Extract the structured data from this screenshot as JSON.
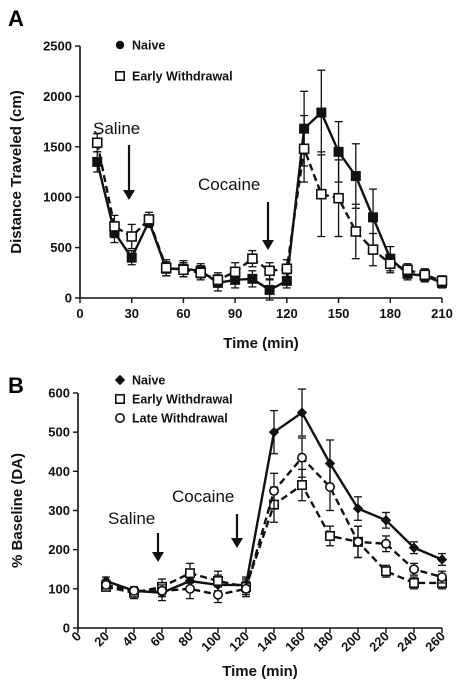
{
  "chart_data": [
    {
      "panel": "A",
      "type": "line",
      "xlabel": "Time (min)",
      "ylabel": "Distance Traveled (cm)",
      "xlim": [
        0,
        210
      ],
      "ylim": [
        0,
        2500
      ],
      "xticks": [
        0,
        30,
        60,
        90,
        120,
        150,
        180,
        210
      ],
      "yticks": [
        0,
        500,
        1000,
        1500,
        2000,
        2500
      ],
      "legend_position": "top-left",
      "grid": false,
      "series": [
        {
          "name": "Naive",
          "marker": "filled-square",
          "line": "solid",
          "points": [
            {
              "x": 10,
              "y": 1350,
              "err": 100
            },
            {
              "x": 20,
              "y": 650,
              "err": 100
            },
            {
              "x": 30,
              "y": 400,
              "err": 70
            },
            {
              "x": 40,
              "y": 760,
              "err": 60
            },
            {
              "x": 50,
              "y": 290,
              "err": 70
            },
            {
              "x": 60,
              "y": 290,
              "err": 80
            },
            {
              "x": 70,
              "y": 270,
              "err": 70
            },
            {
              "x": 80,
              "y": 150,
              "err": 80
            },
            {
              "x": 90,
              "y": 180,
              "err": 80
            },
            {
              "x": 100,
              "y": 190,
              "err": 80
            },
            {
              "x": 110,
              "y": 80,
              "err": 100
            },
            {
              "x": 120,
              "y": 170,
              "err": 70
            },
            {
              "x": 130,
              "y": 1680,
              "err": 370
            },
            {
              "x": 140,
              "y": 1840,
              "err": 420
            },
            {
              "x": 150,
              "y": 1450,
              "err": 300
            },
            {
              "x": 160,
              "y": 1210,
              "err": 320
            },
            {
              "x": 170,
              "y": 800,
              "err": 280
            },
            {
              "x": 180,
              "y": 390,
              "err": 120
            },
            {
              "x": 190,
              "y": 240,
              "err": 60
            },
            {
              "x": 200,
              "y": 220,
              "err": 60
            },
            {
              "x": 210,
              "y": 150,
              "err": 50
            }
          ]
        },
        {
          "name": "Early Withdrawal",
          "marker": "open-square",
          "line": "dashed",
          "points": [
            {
              "x": 10,
              "y": 1540,
              "err": 90
            },
            {
              "x": 20,
              "y": 710,
              "err": 110
            },
            {
              "x": 30,
              "y": 610,
              "err": 120
            },
            {
              "x": 40,
              "y": 780,
              "err": 70
            },
            {
              "x": 50,
              "y": 300,
              "err": 80
            },
            {
              "x": 60,
              "y": 280,
              "err": 70
            },
            {
              "x": 70,
              "y": 250,
              "err": 70
            },
            {
              "x": 80,
              "y": 180,
              "err": 70
            },
            {
              "x": 90,
              "y": 260,
              "err": 90
            },
            {
              "x": 100,
              "y": 390,
              "err": 80
            },
            {
              "x": 110,
              "y": 270,
              "err": 80
            },
            {
              "x": 120,
              "y": 290,
              "err": 90
            },
            {
              "x": 130,
              "y": 1480,
              "err": 330
            },
            {
              "x": 140,
              "y": 1030,
              "err": 420
            },
            {
              "x": 150,
              "y": 990,
              "err": 380
            },
            {
              "x": 160,
              "y": 660,
              "err": 270
            },
            {
              "x": 170,
              "y": 480,
              "err": 160
            },
            {
              "x": 180,
              "y": 340,
              "err": 90
            },
            {
              "x": 190,
              "y": 280,
              "err": 60
            },
            {
              "x": 200,
              "y": 230,
              "err": 60
            },
            {
              "x": 210,
              "y": 170,
              "err": 50
            }
          ]
        }
      ],
      "annotations": [
        {
          "text": "Saline",
          "x": 30
        },
        {
          "text": "Cocaine",
          "x": 115
        }
      ]
    },
    {
      "panel": "B",
      "type": "line",
      "xlabel": "Time (min)",
      "ylabel": "% Baseline (DA)",
      "xlim": [
        0,
        260
      ],
      "ylim": [
        0,
        600
      ],
      "xticks": [
        0,
        20,
        40,
        60,
        80,
        100,
        120,
        140,
        160,
        180,
        200,
        220,
        240,
        260
      ],
      "yticks": [
        0,
        100,
        200,
        300,
        400,
        500,
        600
      ],
      "legend_position": "top-left",
      "grid": false,
      "series": [
        {
          "name": "Naive",
          "marker": "filled-diamond",
          "line": "solid",
          "points": [
            {
              "x": 20,
              "y": 120,
              "err": 10
            },
            {
              "x": 40,
              "y": 95,
              "err": 10
            },
            {
              "x": 60,
              "y": 90,
              "err": 20
            },
            {
              "x": 80,
              "y": 120,
              "err": 25
            },
            {
              "x": 100,
              "y": 110,
              "err": 25
            },
            {
              "x": 120,
              "y": 110,
              "err": 20
            },
            {
              "x": 140,
              "y": 500,
              "err": 55
            },
            {
              "x": 160,
              "y": 550,
              "err": 60
            },
            {
              "x": 180,
              "y": 420,
              "err": 60
            },
            {
              "x": 200,
              "y": 305,
              "err": 30
            },
            {
              "x": 220,
              "y": 275,
              "err": 20
            },
            {
              "x": 240,
              "y": 205,
              "err": 15
            },
            {
              "x": 260,
              "y": 175,
              "err": 15
            }
          ]
        },
        {
          "name": "Early Withdrawal",
          "marker": "open-square",
          "line": "dashed",
          "points": [
            {
              "x": 20,
              "y": 105,
              "err": 10
            },
            {
              "x": 40,
              "y": 90,
              "err": 15
            },
            {
              "x": 60,
              "y": 105,
              "err": 20
            },
            {
              "x": 80,
              "y": 140,
              "err": 25
            },
            {
              "x": 100,
              "y": 120,
              "err": 25
            },
            {
              "x": 120,
              "y": 105,
              "err": 20
            },
            {
              "x": 140,
              "y": 315,
              "err": 45
            },
            {
              "x": 160,
              "y": 365,
              "err": 40
            },
            {
              "x": 180,
              "y": 235,
              "err": 25
            },
            {
              "x": 200,
              "y": 220,
              "err": 40
            },
            {
              "x": 220,
              "y": 145,
              "err": 15
            },
            {
              "x": 240,
              "y": 115,
              "err": 15
            },
            {
              "x": 260,
              "y": 115,
              "err": 15
            }
          ]
        },
        {
          "name": "Late Withdrawal",
          "marker": "open-circle",
          "line": "dashed",
          "points": [
            {
              "x": 20,
              "y": 110,
              "err": 10
            },
            {
              "x": 40,
              "y": 95,
              "err": 10
            },
            {
              "x": 60,
              "y": 95,
              "err": 15
            },
            {
              "x": 80,
              "y": 100,
              "err": 25
            },
            {
              "x": 100,
              "y": 85,
              "err": 20
            },
            {
              "x": 120,
              "y": 100,
              "err": 20
            },
            {
              "x": 140,
              "y": 350,
              "err": 45
            },
            {
              "x": 160,
              "y": 435,
              "err": 50
            },
            {
              "x": 180,
              "y": 360,
              "err": 60
            },
            {
              "x": 200,
              "y": 220,
              "err": 40
            },
            {
              "x": 220,
              "y": 215,
              "err": 20
            },
            {
              "x": 240,
              "y": 150,
              "err": 15
            },
            {
              "x": 260,
              "y": 130,
              "err": 15
            }
          ]
        }
      ],
      "annotations": [
        {
          "text": "Saline",
          "x": 60
        },
        {
          "text": "Cocaine",
          "x": 120
        }
      ]
    }
  ]
}
